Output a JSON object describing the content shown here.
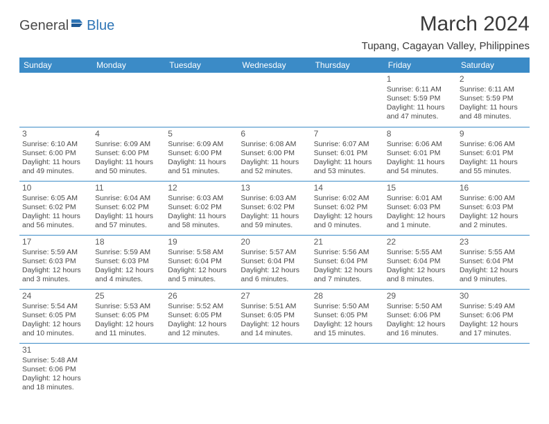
{
  "logo": {
    "part1": "General",
    "part2": "Blue"
  },
  "title": "March 2024",
  "location": "Tupang, Cagayan Valley, Philippines",
  "colors": {
    "header_bg": "#3b8bc7",
    "header_text": "#ffffff",
    "border": "#3b8bc7",
    "logo_blue": "#2e75b6",
    "text": "#4a4a4a"
  },
  "day_headers": [
    "Sunday",
    "Monday",
    "Tuesday",
    "Wednesday",
    "Thursday",
    "Friday",
    "Saturday"
  ],
  "weeks": [
    [
      null,
      null,
      null,
      null,
      null,
      {
        "n": "1",
        "sr": "Sunrise: 6:11 AM",
        "ss": "Sunset: 5:59 PM",
        "dl": "Daylight: 11 hours and 47 minutes."
      },
      {
        "n": "2",
        "sr": "Sunrise: 6:11 AM",
        "ss": "Sunset: 5:59 PM",
        "dl": "Daylight: 11 hours and 48 minutes."
      }
    ],
    [
      {
        "n": "3",
        "sr": "Sunrise: 6:10 AM",
        "ss": "Sunset: 6:00 PM",
        "dl": "Daylight: 11 hours and 49 minutes."
      },
      {
        "n": "4",
        "sr": "Sunrise: 6:09 AM",
        "ss": "Sunset: 6:00 PM",
        "dl": "Daylight: 11 hours and 50 minutes."
      },
      {
        "n": "5",
        "sr": "Sunrise: 6:09 AM",
        "ss": "Sunset: 6:00 PM",
        "dl": "Daylight: 11 hours and 51 minutes."
      },
      {
        "n": "6",
        "sr": "Sunrise: 6:08 AM",
        "ss": "Sunset: 6:00 PM",
        "dl": "Daylight: 11 hours and 52 minutes."
      },
      {
        "n": "7",
        "sr": "Sunrise: 6:07 AM",
        "ss": "Sunset: 6:01 PM",
        "dl": "Daylight: 11 hours and 53 minutes."
      },
      {
        "n": "8",
        "sr": "Sunrise: 6:06 AM",
        "ss": "Sunset: 6:01 PM",
        "dl": "Daylight: 11 hours and 54 minutes."
      },
      {
        "n": "9",
        "sr": "Sunrise: 6:06 AM",
        "ss": "Sunset: 6:01 PM",
        "dl": "Daylight: 11 hours and 55 minutes."
      }
    ],
    [
      {
        "n": "10",
        "sr": "Sunrise: 6:05 AM",
        "ss": "Sunset: 6:02 PM",
        "dl": "Daylight: 11 hours and 56 minutes."
      },
      {
        "n": "11",
        "sr": "Sunrise: 6:04 AM",
        "ss": "Sunset: 6:02 PM",
        "dl": "Daylight: 11 hours and 57 minutes."
      },
      {
        "n": "12",
        "sr": "Sunrise: 6:03 AM",
        "ss": "Sunset: 6:02 PM",
        "dl": "Daylight: 11 hours and 58 minutes."
      },
      {
        "n": "13",
        "sr": "Sunrise: 6:03 AM",
        "ss": "Sunset: 6:02 PM",
        "dl": "Daylight: 11 hours and 59 minutes."
      },
      {
        "n": "14",
        "sr": "Sunrise: 6:02 AM",
        "ss": "Sunset: 6:02 PM",
        "dl": "Daylight: 12 hours and 0 minutes."
      },
      {
        "n": "15",
        "sr": "Sunrise: 6:01 AM",
        "ss": "Sunset: 6:03 PM",
        "dl": "Daylight: 12 hours and 1 minute."
      },
      {
        "n": "16",
        "sr": "Sunrise: 6:00 AM",
        "ss": "Sunset: 6:03 PM",
        "dl": "Daylight: 12 hours and 2 minutes."
      }
    ],
    [
      {
        "n": "17",
        "sr": "Sunrise: 5:59 AM",
        "ss": "Sunset: 6:03 PM",
        "dl": "Daylight: 12 hours and 3 minutes."
      },
      {
        "n": "18",
        "sr": "Sunrise: 5:59 AM",
        "ss": "Sunset: 6:03 PM",
        "dl": "Daylight: 12 hours and 4 minutes."
      },
      {
        "n": "19",
        "sr": "Sunrise: 5:58 AM",
        "ss": "Sunset: 6:04 PM",
        "dl": "Daylight: 12 hours and 5 minutes."
      },
      {
        "n": "20",
        "sr": "Sunrise: 5:57 AM",
        "ss": "Sunset: 6:04 PM",
        "dl": "Daylight: 12 hours and 6 minutes."
      },
      {
        "n": "21",
        "sr": "Sunrise: 5:56 AM",
        "ss": "Sunset: 6:04 PM",
        "dl": "Daylight: 12 hours and 7 minutes."
      },
      {
        "n": "22",
        "sr": "Sunrise: 5:55 AM",
        "ss": "Sunset: 6:04 PM",
        "dl": "Daylight: 12 hours and 8 minutes."
      },
      {
        "n": "23",
        "sr": "Sunrise: 5:55 AM",
        "ss": "Sunset: 6:04 PM",
        "dl": "Daylight: 12 hours and 9 minutes."
      }
    ],
    [
      {
        "n": "24",
        "sr": "Sunrise: 5:54 AM",
        "ss": "Sunset: 6:05 PM",
        "dl": "Daylight: 12 hours and 10 minutes."
      },
      {
        "n": "25",
        "sr": "Sunrise: 5:53 AM",
        "ss": "Sunset: 6:05 PM",
        "dl": "Daylight: 12 hours and 11 minutes."
      },
      {
        "n": "26",
        "sr": "Sunrise: 5:52 AM",
        "ss": "Sunset: 6:05 PM",
        "dl": "Daylight: 12 hours and 12 minutes."
      },
      {
        "n": "27",
        "sr": "Sunrise: 5:51 AM",
        "ss": "Sunset: 6:05 PM",
        "dl": "Daylight: 12 hours and 14 minutes."
      },
      {
        "n": "28",
        "sr": "Sunrise: 5:50 AM",
        "ss": "Sunset: 6:05 PM",
        "dl": "Daylight: 12 hours and 15 minutes."
      },
      {
        "n": "29",
        "sr": "Sunrise: 5:50 AM",
        "ss": "Sunset: 6:06 PM",
        "dl": "Daylight: 12 hours and 16 minutes."
      },
      {
        "n": "30",
        "sr": "Sunrise: 5:49 AM",
        "ss": "Sunset: 6:06 PM",
        "dl": "Daylight: 12 hours and 17 minutes."
      }
    ],
    [
      {
        "n": "31",
        "sr": "Sunrise: 5:48 AM",
        "ss": "Sunset: 6:06 PM",
        "dl": "Daylight: 12 hours and 18 minutes."
      },
      null,
      null,
      null,
      null,
      null,
      null
    ]
  ]
}
